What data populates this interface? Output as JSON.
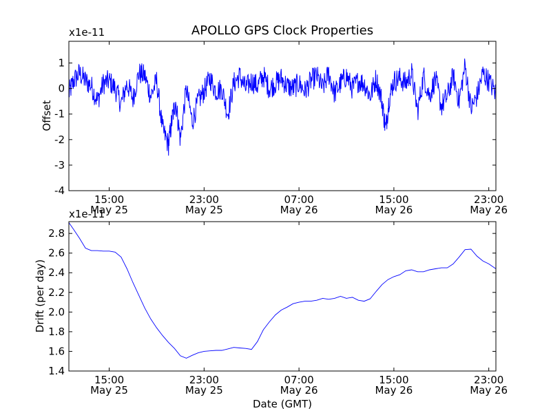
{
  "chart_data": [
    {
      "type": "line",
      "title": "APOLLO GPS Clock Properties",
      "ylabel": "Offset",
      "xlabel": "",
      "y_multiplier": "x1e-11",
      "ylim": [
        -4,
        1.85
      ],
      "yticks": [
        1,
        0,
        -1,
        -2,
        -3,
        -4
      ],
      "ytick_labels": [
        "1",
        "0",
        "-1",
        "-2",
        "-3",
        "-4"
      ],
      "xlim_hours": [
        11.6,
        47.6
      ],
      "xticks": [
        {
          "hour": 15,
          "time": "15:00",
          "date": "May 25"
        },
        {
          "hour": 23,
          "time": "23:00",
          "date": "May 25"
        },
        {
          "hour": 31,
          "time": "07:00",
          "date": "May 26"
        },
        {
          "hour": 39,
          "time": "15:00",
          "date": "May 26"
        },
        {
          "hour": 47,
          "time": "23:00",
          "date": "May 26"
        }
      ],
      "grid": false,
      "color": "#0000ff",
      "series": [
        {
          "x_hours": [
            11.6,
            12.0,
            12.5,
            13.0,
            13.5,
            14.0,
            14.5,
            15.0,
            15.5,
            16.0,
            16.5,
            17.0,
            17.5,
            18.0,
            18.5,
            19.0,
            19.5,
            20.0,
            20.3,
            20.6,
            21.0,
            21.5,
            22.0,
            22.5,
            23.0,
            23.5,
            24.0,
            24.5,
            25.0,
            25.5,
            26.0,
            26.5,
            27.0,
            27.5,
            28.0,
            28.5,
            29.0,
            29.5,
            30.0,
            30.5,
            31.0,
            31.5,
            32.0,
            32.5,
            33.0,
            33.5,
            34.0,
            34.5,
            35.0,
            35.5,
            36.0,
            36.5,
            37.0,
            37.5,
            38.0,
            38.3,
            38.6,
            39.0,
            39.5,
            40.0,
            40.5,
            41.0,
            41.5,
            42.0,
            42.5,
            43.0,
            43.5,
            44.0,
            44.5,
            45.0,
            45.5,
            46.0,
            46.5,
            47.0,
            47.6
          ],
          "values": [
            -0.2,
            0.3,
            0.6,
            0.3,
            0.1,
            -0.5,
            0.2,
            0.3,
            0.0,
            -0.6,
            0.2,
            -0.4,
            0.6,
            0.5,
            -0.3,
            0.3,
            -1.6,
            -2.2,
            -1.2,
            -0.5,
            -2.0,
            0.0,
            -1.3,
            -0.5,
            -0.1,
            0.4,
            -0.1,
            0.0,
            -1.0,
            0.2,
            0.5,
            0.0,
            0.3,
            0.1,
            0.5,
            0.0,
            0.2,
            0.4,
            0.1,
            0.0,
            0.2,
            -0.1,
            0.3,
            0.5,
            0.0,
            0.6,
            -0.2,
            0.2,
            0.5,
            0.0,
            0.3,
            0.2,
            -0.3,
            0.4,
            -0.5,
            -1.6,
            -0.4,
            0.3,
            0.4,
            0.2,
            0.6,
            -0.9,
            0.5,
            -0.3,
            0.4,
            -0.7,
            -0.3,
            0.5,
            -0.5,
            0.9,
            -0.8,
            -0.3,
            0.6,
            0.3,
            -0.2
          ]
        }
      ]
    },
    {
      "type": "line",
      "title": "",
      "ylabel": "Drift (per day)",
      "xlabel": "Date (GMT)",
      "y_multiplier": "x1e-11",
      "ylim": [
        1.4,
        2.92
      ],
      "yticks": [
        2.8,
        2.6,
        2.4,
        2.2,
        2.0,
        1.8,
        1.6,
        1.4
      ],
      "ytick_labels": [
        "2.8",
        "2.6",
        "2.4",
        "2.2",
        "2.0",
        "1.8",
        "1.6",
        "1.4"
      ],
      "xlim_hours": [
        11.6,
        47.6
      ],
      "xticks": [
        {
          "hour": 15,
          "time": "15:00",
          "date": "May 25"
        },
        {
          "hour": 23,
          "time": "23:00",
          "date": "May 25"
        },
        {
          "hour": 31,
          "time": "07:00",
          "date": "May 26"
        },
        {
          "hour": 39,
          "time": "15:00",
          "date": "May 26"
        },
        {
          "hour": 47,
          "time": "23:00",
          "date": "May 26"
        }
      ],
      "grid": false,
      "color": "#0000ff",
      "series": [
        {
          "x_hours": [
            11.6,
            12.0,
            12.5,
            13.0,
            13.5,
            14.0,
            14.5,
            15.0,
            15.5,
            16.0,
            16.5,
            17.0,
            17.5,
            18.0,
            18.5,
            19.0,
            19.5,
            20.0,
            20.5,
            21.0,
            21.5,
            22.0,
            22.5,
            23.0,
            23.5,
            24.0,
            24.5,
            25.0,
            25.5,
            26.0,
            26.5,
            27.0,
            27.5,
            28.0,
            28.5,
            29.0,
            29.5,
            30.0,
            30.5,
            31.0,
            31.5,
            32.0,
            32.5,
            33.0,
            33.5,
            34.0,
            34.5,
            35.0,
            35.5,
            36.0,
            36.5,
            37.0,
            37.5,
            38.0,
            38.5,
            39.0,
            39.5,
            40.0,
            40.5,
            41.0,
            41.5,
            42.0,
            42.5,
            43.0,
            43.5,
            44.0,
            44.5,
            45.0,
            45.5,
            46.0,
            46.5,
            47.0,
            47.6
          ],
          "values": [
            2.91,
            2.84,
            2.75,
            2.65,
            2.625,
            2.625,
            2.62,
            2.62,
            2.61,
            2.56,
            2.44,
            2.3,
            2.17,
            2.04,
            1.93,
            1.84,
            1.76,
            1.69,
            1.63,
            1.555,
            1.53,
            1.56,
            1.585,
            1.6,
            1.605,
            1.61,
            1.61,
            1.625,
            1.64,
            1.635,
            1.63,
            1.62,
            1.7,
            1.82,
            1.9,
            1.97,
            2.02,
            2.05,
            2.085,
            2.1,
            2.11,
            2.11,
            2.12,
            2.14,
            2.13,
            2.14,
            2.16,
            2.14,
            2.15,
            2.12,
            2.11,
            2.135,
            2.21,
            2.28,
            2.33,
            2.36,
            2.38,
            2.42,
            2.43,
            2.41,
            2.41,
            2.43,
            2.44,
            2.45,
            2.45,
            2.49,
            2.56,
            2.635,
            2.64,
            2.57,
            2.52,
            2.49,
            2.44
          ]
        }
      ]
    }
  ]
}
